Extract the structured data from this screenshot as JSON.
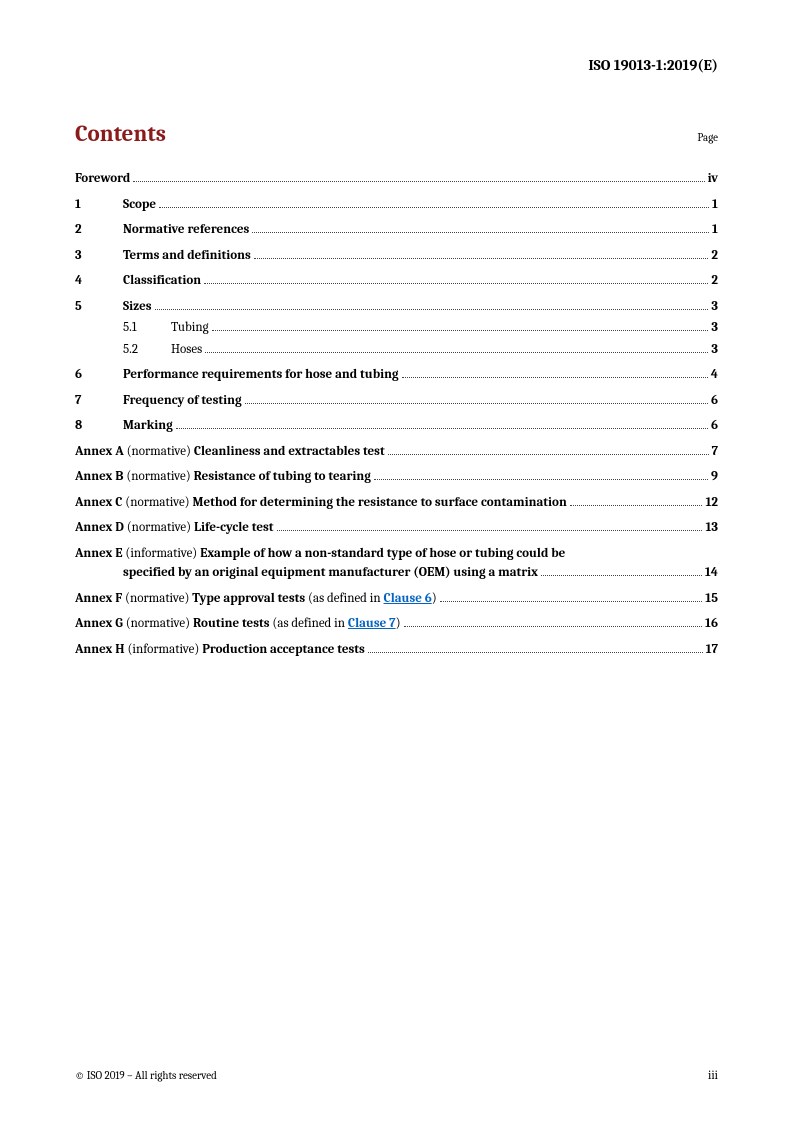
{
  "header": "ISO 19013-1:2019(E)",
  "title": "Contents",
  "page_label": "Page",
  "entries": {
    "foreword": {
      "label": "Foreword",
      "pg": "iv"
    },
    "s1": {
      "num": "1",
      "label": "Scope",
      "pg": "1"
    },
    "s2": {
      "num": "2",
      "label": "Normative references",
      "pg": "1"
    },
    "s3": {
      "num": "3",
      "label": "Terms and definitions",
      "pg": "2"
    },
    "s4": {
      "num": "4",
      "label": "Classification",
      "pg": "2"
    },
    "s5": {
      "num": "5",
      "label": "Sizes",
      "pg": "3"
    },
    "s51": {
      "num": "5.1",
      "label": "Tubing",
      "pg": "3"
    },
    "s52": {
      "num": "5.2",
      "label": "Hoses",
      "pg": "3"
    },
    "s6": {
      "num": "6",
      "label": "Performance requirements for hose and tubing",
      "pg": "4"
    },
    "s7": {
      "num": "7",
      "label": "Frequency of testing",
      "pg": "6"
    },
    "s8": {
      "num": "8",
      "label": "Marking",
      "pg": "6"
    },
    "axA": {
      "prefix": "Annex A",
      "type": " (normative) ",
      "title": "Cleanliness and extractables test",
      "pg": "7"
    },
    "axB": {
      "prefix": "Annex B",
      "type": " (normative) ",
      "title": "Resistance of tubing to tearing",
      "pg": "9"
    },
    "axC": {
      "prefix": "Annex C",
      "type": " (normative) ",
      "title": "Method for determining the resistance to surface contamination",
      "pg": "12"
    },
    "axD": {
      "prefix": "Annex D",
      "type": " (normative) ",
      "title": "Life-cycle test",
      "pg": "13"
    },
    "axE": {
      "prefix": "Annex E",
      "type": " (informative) ",
      "title1": "Example of how a non-standard type of hose or tubing could be",
      "title2": "specified by an original equipment manufacturer (OEM) using a matrix",
      "pg": "14"
    },
    "axF": {
      "prefix": "Annex F",
      "type": " (normative) ",
      "title": "Type approval tests",
      "extra1": " (as defined in ",
      "link": "Clause 6",
      "extra2": ")",
      "pg": "15"
    },
    "axG": {
      "prefix": "Annex G",
      "type": " (normative) ",
      "title": "Routine tests",
      "extra1": " (as defined in ",
      "link": "Clause 7",
      "extra2": ")",
      "pg": "16"
    },
    "axH": {
      "prefix": "Annex H",
      "type": " (informative) ",
      "title": "Production acceptance tests",
      "pg": "17"
    }
  },
  "footer": {
    "left": "© ISO 2019 – All rights reserved",
    "right": "iii"
  }
}
